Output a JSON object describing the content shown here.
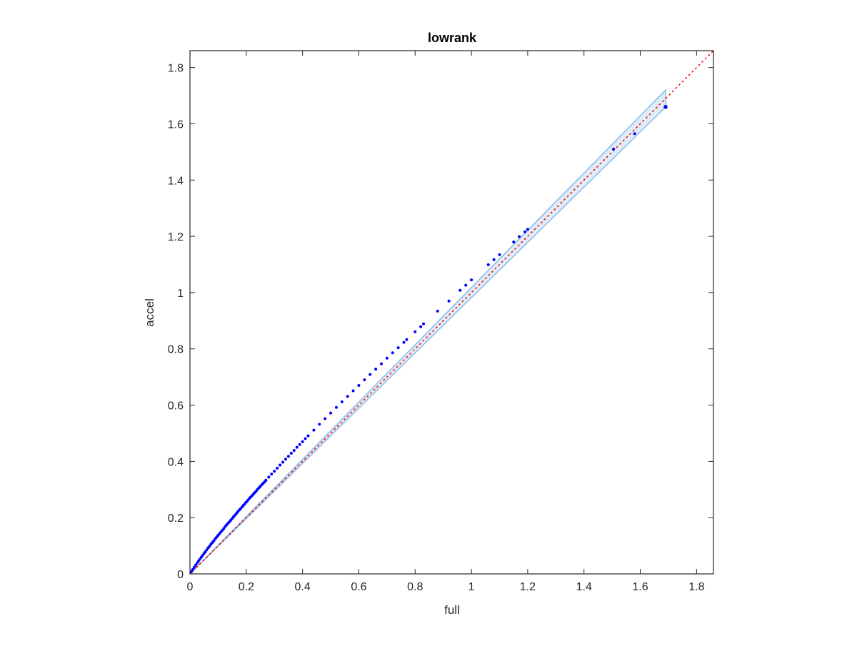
{
  "chart_data": {
    "type": "scatter",
    "title": "lowrank",
    "xlabel": "full",
    "ylabel": "accel",
    "xlim": [
      0,
      1.86
    ],
    "ylim": [
      0,
      1.86
    ],
    "xticks": [
      0,
      0.2,
      0.4,
      0.6,
      0.8,
      1,
      1.2,
      1.4,
      1.6,
      1.8
    ],
    "yticks": [
      0,
      0.2,
      0.4,
      0.6,
      0.8,
      1,
      1.2,
      1.4,
      1.6,
      1.8
    ],
    "xtick_labels": [
      "0",
      "0.2",
      "0.4",
      "0.6",
      "0.8",
      "1",
      "1.2",
      "1.4",
      "1.6",
      "1.8"
    ],
    "ytick_labels": [
      "0",
      "0.2",
      "0.4",
      "0.6",
      "0.8",
      "1",
      "1.2",
      "1.4",
      "1.6",
      "1.8"
    ],
    "grid": false,
    "box": true,
    "series": [
      {
        "kind": "scatter",
        "color": "#0000ff",
        "points": [
          [
            0,
            0
          ],
          [
            0.005,
            0.008
          ],
          [
            0.01,
            0.016
          ],
          [
            0.015,
            0.023
          ],
          [
            0.02,
            0.031
          ],
          [
            0.025,
            0.038
          ],
          [
            0.03,
            0.045
          ],
          [
            0.035,
            0.052
          ],
          [
            0.04,
            0.059
          ],
          [
            0.045,
            0.066
          ],
          [
            0.05,
            0.073
          ],
          [
            0.055,
            0.079
          ],
          [
            0.06,
            0.086
          ],
          [
            0.065,
            0.093
          ],
          [
            0.07,
            0.099
          ],
          [
            0.075,
            0.106
          ],
          [
            0.08,
            0.112
          ],
          [
            0.085,
            0.118
          ],
          [
            0.09,
            0.125
          ],
          [
            0.095,
            0.131
          ],
          [
            0.1,
            0.137
          ],
          [
            0.105,
            0.143
          ],
          [
            0.11,
            0.149
          ],
          [
            0.115,
            0.155
          ],
          [
            0.12,
            0.161
          ],
          [
            0.125,
            0.168
          ],
          [
            0.13,
            0.174
          ],
          [
            0.135,
            0.18
          ],
          [
            0.14,
            0.185
          ],
          [
            0.145,
            0.191
          ],
          [
            0.15,
            0.197
          ],
          [
            0.155,
            0.203
          ],
          [
            0.16,
            0.209
          ],
          [
            0.165,
            0.215
          ],
          [
            0.17,
            0.221
          ],
          [
            0.175,
            0.227
          ],
          [
            0.18,
            0.232
          ],
          [
            0.185,
            0.238
          ],
          [
            0.19,
            0.244
          ],
          [
            0.195,
            0.25
          ],
          [
            0.2,
            0.255
          ],
          [
            0.205,
            0.261
          ],
          [
            0.21,
            0.267
          ],
          [
            0.215,
            0.272
          ],
          [
            0.22,
            0.278
          ],
          [
            0.225,
            0.283
          ],
          [
            0.23,
            0.289
          ],
          [
            0.235,
            0.294
          ],
          [
            0.24,
            0.3
          ],
          [
            0.245,
            0.306
          ],
          [
            0.25,
            0.311
          ],
          [
            0.255,
            0.317
          ],
          [
            0.26,
            0.322
          ],
          [
            0.265,
            0.327
          ],
          [
            0.27,
            0.333
          ],
          [
            0.28,
            0.344
          ],
          [
            0.29,
            0.355
          ],
          [
            0.3,
            0.365
          ],
          [
            0.31,
            0.376
          ],
          [
            0.32,
            0.387
          ],
          [
            0.33,
            0.397
          ],
          [
            0.34,
            0.408
          ],
          [
            0.35,
            0.418
          ],
          [
            0.36,
            0.429
          ],
          [
            0.37,
            0.439
          ],
          [
            0.38,
            0.45
          ],
          [
            0.39,
            0.46
          ],
          [
            0.4,
            0.47
          ],
          [
            0.41,
            0.481
          ],
          [
            0.42,
            0.491
          ],
          [
            0.44,
            0.511
          ],
          [
            0.46,
            0.532
          ],
          [
            0.48,
            0.552
          ],
          [
            0.5,
            0.572
          ],
          [
            0.52,
            0.592
          ],
          [
            0.54,
            0.612
          ],
          [
            0.56,
            0.631
          ],
          [
            0.58,
            0.651
          ],
          [
            0.6,
            0.67
          ],
          [
            0.62,
            0.69
          ],
          [
            0.64,
            0.709
          ],
          [
            0.66,
            0.728
          ],
          [
            0.68,
            0.747
          ],
          [
            0.7,
            0.767
          ],
          [
            0.72,
            0.786
          ],
          [
            0.74,
            0.804
          ],
          [
            0.76,
            0.823
          ],
          [
            0.77,
            0.833
          ],
          [
            0.8,
            0.861
          ],
          [
            0.82,
            0.879
          ],
          [
            0.83,
            0.889
          ],
          [
            0.88,
            0.934
          ],
          [
            0.92,
            0.97
          ],
          [
            0.96,
            1.008
          ],
          [
            0.98,
            1.026
          ],
          [
            1.0,
            1.045
          ],
          [
            1.06,
            1.099
          ],
          [
            1.08,
            1.117
          ],
          [
            1.1,
            1.135
          ],
          [
            1.15,
            1.18
          ],
          [
            1.17,
            1.199
          ],
          [
            1.19,
            1.216
          ],
          [
            1.2,
            1.225
          ],
          [
            1.505,
            1.51
          ],
          [
            1.58,
            1.565
          ],
          [
            1.69,
            1.66
          ]
        ]
      },
      {
        "kind": "band",
        "color": "#8cbfe6",
        "x": [
          0,
          1.69
        ],
        "upper": [
          0,
          1.72
        ],
        "lower": [
          0,
          1.66
        ]
      },
      {
        "kind": "reference-line",
        "style": "dotted",
        "color": "#ff0000",
        "x": [
          0,
          1.86
        ],
        "y": [
          0,
          1.86
        ]
      }
    ]
  }
}
